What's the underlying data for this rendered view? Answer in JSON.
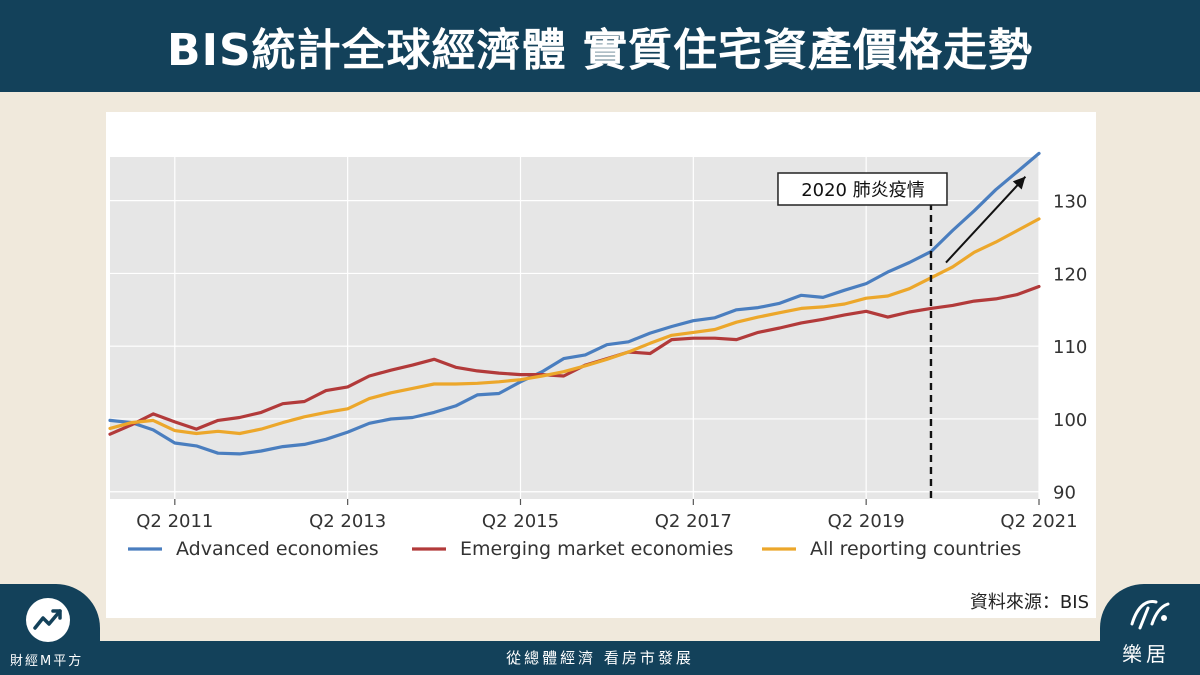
{
  "header": {
    "title": "BIS統計全球經濟體 實質住宅資產價格走勢"
  },
  "footer": {
    "tagline": "從總體經濟 看房市發展",
    "left_brand": "財經M平方",
    "right_brand": "樂居"
  },
  "colors": {
    "header_bg": "#13415a",
    "page_bg": "#f0e9dc",
    "plot_bg": "#e6e6e6",
    "advanced": "#4a7ebf",
    "emerging": "#b23a3a",
    "all": "#eca72b"
  },
  "icons": {
    "left_logo": "chart-trend-icon",
    "right_logo": "leju-logo-icon"
  },
  "chart_data": {
    "type": "line",
    "title": "",
    "xlabel": "",
    "ylabel": "",
    "ylim": [
      89,
      136
    ],
    "yticks": [
      90,
      100,
      110,
      120,
      130
    ],
    "xticks": [
      "Q2 2011",
      "Q2 2013",
      "Q2 2015",
      "Q2 2017",
      "Q2 2019",
      "Q2 2021"
    ],
    "x": [
      "Q3 2010",
      "Q4 2010",
      "Q1 2011",
      "Q2 2011",
      "Q3 2011",
      "Q4 2011",
      "Q1 2012",
      "Q2 2012",
      "Q3 2012",
      "Q4 2012",
      "Q1 2013",
      "Q2 2013",
      "Q3 2013",
      "Q4 2013",
      "Q1 2014",
      "Q2 2014",
      "Q3 2014",
      "Q4 2014",
      "Q1 2015",
      "Q2 2015",
      "Q3 2015",
      "Q4 2015",
      "Q1 2016",
      "Q2 2016",
      "Q3 2016",
      "Q4 2016",
      "Q1 2017",
      "Q2 2017",
      "Q3 2017",
      "Q4 2017",
      "Q1 2018",
      "Q2 2018",
      "Q3 2018",
      "Q4 2018",
      "Q1 2019",
      "Q2 2019",
      "Q3 2019",
      "Q4 2019",
      "Q1 2020",
      "Q2 2020",
      "Q3 2020",
      "Q4 2020",
      "Q1 2021",
      "Q2 2021"
    ],
    "series": [
      {
        "name": "Advanced economies",
        "color": "#4a7ebf",
        "values": [
          99.8,
          99.5,
          98.5,
          96.7,
          96.3,
          95.3,
          95.2,
          95.6,
          96.2,
          96.5,
          97.2,
          98.2,
          99.4,
          100,
          100.2,
          100.9,
          101.8,
          103.3,
          103.5,
          105.1,
          106.5,
          108.3,
          108.8,
          110.2,
          110.6,
          111.8,
          112.7,
          113.5,
          113.9,
          115,
          115.3,
          115.9,
          117,
          116.7,
          117.7,
          118.6,
          120.2,
          121.5,
          123,
          125.9,
          128.6,
          131.5,
          134,
          136.5
        ]
      },
      {
        "name": "Emerging market economies",
        "color": "#b23a3a",
        "values": [
          97.9,
          99.2,
          100.7,
          99.6,
          98.6,
          99.8,
          100.2,
          100.9,
          102.1,
          102.4,
          103.9,
          104.4,
          105.9,
          106.7,
          107.4,
          108.2,
          107.1,
          106.6,
          106.3,
          106.1,
          106.1,
          105.9,
          107.4,
          108.3,
          109.2,
          109,
          110.9,
          111.1,
          111.1,
          110.9,
          111.9,
          112.5,
          113.2,
          113.7,
          114.3,
          114.8,
          114,
          114.7,
          115.2,
          115.6,
          116.2,
          116.5,
          117.1,
          118.2
        ]
      },
      {
        "name": "All reporting countries",
        "color": "#eca72b",
        "values": [
          98.7,
          99.5,
          99.8,
          98.4,
          98,
          98.3,
          98,
          98.6,
          99.5,
          100.3,
          100.9,
          101.4,
          102.8,
          103.6,
          104.2,
          104.8,
          104.8,
          104.9,
          105.1,
          105.4,
          105.9,
          106.5,
          107.3,
          108.2,
          109.2,
          110.4,
          111.5,
          111.9,
          112.3,
          113.3,
          114,
          114.6,
          115.2,
          115.4,
          115.8,
          116.6,
          116.9,
          117.9,
          119.4,
          120.9,
          122.9,
          124.3,
          125.9,
          127.5
        ]
      }
    ],
    "annotations": [
      {
        "label": "2020 肺炎疫情",
        "x": "Q1 2020",
        "style": "dashed-vertical-line"
      },
      {
        "label": "",
        "style": "arrow-up-right",
        "note": ""
      }
    ],
    "legend_position": "bottom",
    "source": "資料來源：BIS",
    "grid": true
  }
}
